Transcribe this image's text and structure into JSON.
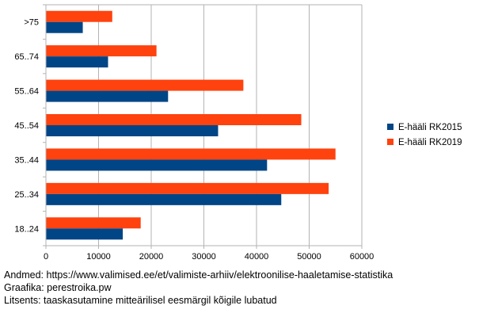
{
  "chart_data": {
    "type": "bar",
    "orientation": "horizontal",
    "categories": [
      ">75",
      "65..74",
      "55..64",
      "45..54",
      "35..44",
      "25..34",
      "18..24"
    ],
    "series": [
      {
        "name": "E-hääli RK2015",
        "color": "#004586",
        "values": [
          7000,
          11800,
          23200,
          32700,
          42000,
          44700,
          14600
        ]
      },
      {
        "name": "E-hääli RK2019",
        "color": "#ff420e",
        "values": [
          12600,
          21000,
          37500,
          48500,
          55000,
          53700,
          18000
        ]
      }
    ],
    "xlim": [
      0,
      60000
    ],
    "xticks": [
      "0",
      "10000",
      "20000",
      "30000",
      "40000",
      "50000",
      "60000"
    ],
    "grid": "vertical",
    "legend": "right"
  },
  "notes": {
    "source": "Andmed: https://www.valimised.ee/et/valimiste-arhiiv/elektroonilise-haaletamise-statistika",
    "graphics": "Graafika: perestroika.pw",
    "license": "Litsents: taaskasutamine mitteärilisel eesmärgil kõigile lubatud"
  }
}
